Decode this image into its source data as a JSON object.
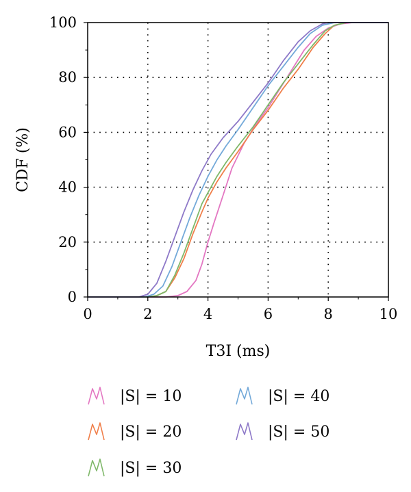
{
  "chart_data": {
    "type": "line",
    "title": "",
    "xlabel": "T3I (ms)",
    "ylabel": "CDF (%)",
    "xlim": [
      0,
      10
    ],
    "ylim": [
      0,
      100
    ],
    "x_ticks": [
      "0",
      "2",
      "4",
      "6",
      "8",
      "10"
    ],
    "y_ticks": [
      "0",
      "20",
      "40",
      "60",
      "80",
      "100"
    ],
    "grid": "dotted",
    "legend_position": "bottom",
    "series": [
      {
        "name": "|S| = 10",
        "color": "#e377c2",
        "points": [
          [
            0,
            0
          ],
          [
            2.6,
            0
          ],
          [
            3.0,
            0.5
          ],
          [
            3.3,
            2
          ],
          [
            3.6,
            6
          ],
          [
            3.8,
            12
          ],
          [
            4.0,
            20
          ],
          [
            4.2,
            27
          ],
          [
            4.5,
            37
          ],
          [
            4.8,
            47
          ],
          [
            5.2,
            56
          ],
          [
            5.6,
            63
          ],
          [
            6.0,
            69
          ],
          [
            6.4,
            76
          ],
          [
            6.8,
            83
          ],
          [
            7.2,
            90
          ],
          [
            7.6,
            95
          ],
          [
            8.0,
            98
          ],
          [
            8.4,
            99.5
          ],
          [
            8.8,
            100
          ],
          [
            10,
            100
          ]
        ]
      },
      {
        "name": "|S| = 20",
        "color": "#f07f4a",
        "points": [
          [
            0,
            0
          ],
          [
            2.0,
            0
          ],
          [
            2.3,
            0.5
          ],
          [
            2.6,
            2
          ],
          [
            2.9,
            7
          ],
          [
            3.2,
            14
          ],
          [
            3.5,
            23
          ],
          [
            3.8,
            31
          ],
          [
            4.0,
            36
          ],
          [
            4.3,
            42
          ],
          [
            4.6,
            47
          ],
          [
            5.0,
            53
          ],
          [
            5.5,
            61
          ],
          [
            6.0,
            68
          ],
          [
            6.5,
            76
          ],
          [
            7.0,
            83
          ],
          [
            7.5,
            91
          ],
          [
            7.9,
            96
          ],
          [
            8.2,
            99
          ],
          [
            8.6,
            100
          ],
          [
            10,
            100
          ]
        ]
      },
      {
        "name": "|S| = 30",
        "color": "#7fb86a",
        "points": [
          [
            0,
            0
          ],
          [
            2.0,
            0
          ],
          [
            2.3,
            0.5
          ],
          [
            2.6,
            2
          ],
          [
            2.9,
            8
          ],
          [
            3.2,
            16
          ],
          [
            3.5,
            25
          ],
          [
            3.8,
            34
          ],
          [
            4.0,
            38
          ],
          [
            4.3,
            44
          ],
          [
            4.6,
            49
          ],
          [
            5.0,
            55
          ],
          [
            5.5,
            62
          ],
          [
            6.0,
            70
          ],
          [
            6.5,
            78
          ],
          [
            7.0,
            85
          ],
          [
            7.5,
            92
          ],
          [
            7.9,
            97
          ],
          [
            8.2,
            99
          ],
          [
            8.6,
            100
          ],
          [
            10,
            100
          ]
        ]
      },
      {
        "name": "|S| = 40",
        "color": "#73a9d9",
        "points": [
          [
            0,
            0
          ],
          [
            1.9,
            0
          ],
          [
            2.2,
            1
          ],
          [
            2.5,
            4
          ],
          [
            2.8,
            11
          ],
          [
            3.1,
            20
          ],
          [
            3.4,
            29
          ],
          [
            3.7,
            37
          ],
          [
            4.0,
            44
          ],
          [
            4.3,
            50
          ],
          [
            4.6,
            55
          ],
          [
            5.0,
            61
          ],
          [
            5.5,
            69
          ],
          [
            6.0,
            77
          ],
          [
            6.5,
            84
          ],
          [
            7.0,
            91
          ],
          [
            7.4,
            96
          ],
          [
            7.8,
            99
          ],
          [
            8.2,
            100
          ],
          [
            10,
            100
          ]
        ]
      },
      {
        "name": "|S| = 50",
        "color": "#8e79c8",
        "points": [
          [
            0,
            0
          ],
          [
            1.7,
            0
          ],
          [
            2.0,
            1
          ],
          [
            2.3,
            5
          ],
          [
            2.6,
            13
          ],
          [
            2.9,
            22
          ],
          [
            3.2,
            31
          ],
          [
            3.5,
            39
          ],
          [
            3.8,
            46
          ],
          [
            4.1,
            52
          ],
          [
            4.5,
            58
          ],
          [
            5.0,
            64
          ],
          [
            5.5,
            71
          ],
          [
            6.0,
            78
          ],
          [
            6.5,
            86
          ],
          [
            7.0,
            93
          ],
          [
            7.4,
            97
          ],
          [
            7.8,
            99.5
          ],
          [
            8.0,
            100
          ],
          [
            10,
            100
          ]
        ]
      }
    ]
  }
}
